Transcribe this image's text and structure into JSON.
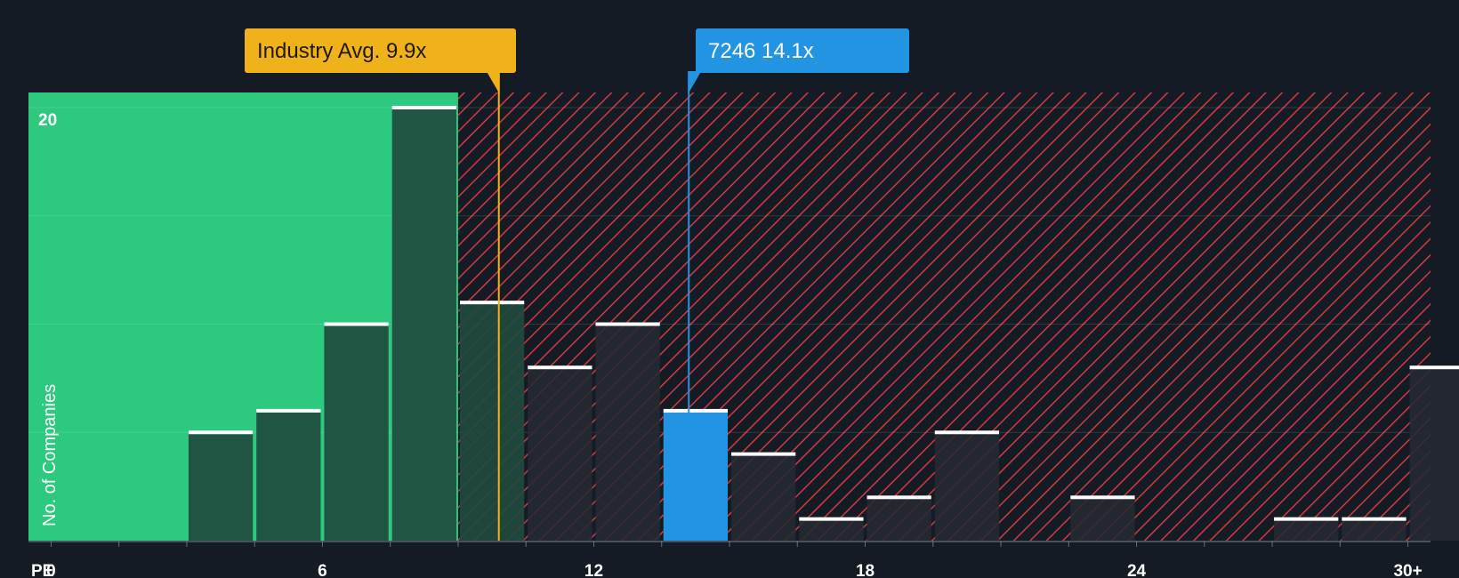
{
  "chart_data": {
    "type": "bar",
    "title": "",
    "xlabel": "PE",
    "ylabel": "No. of Companies",
    "xlim": [
      -0.5,
      30.5
    ],
    "ylim": [
      0,
      20.7
    ],
    "grid": true,
    "x_ticks": [
      {
        "value": 0,
        "label": "0"
      },
      {
        "value": 6,
        "label": "6"
      },
      {
        "value": 12,
        "label": "12"
      },
      {
        "value": 18,
        "label": "18"
      },
      {
        "value": 24,
        "label": "24"
      },
      {
        "value": 30,
        "label": "30+"
      }
    ],
    "y_ticks": [
      {
        "value": 20,
        "label": "20"
      }
    ],
    "bin_width": 1.5,
    "bins": [
      {
        "start": 3.0,
        "value": 5
      },
      {
        "start": 4.5,
        "value": 6
      },
      {
        "start": 6.0,
        "value": 10
      },
      {
        "start": 7.5,
        "value": 20
      },
      {
        "start": 9.0,
        "value": 11
      },
      {
        "start": 10.5,
        "value": 8
      },
      {
        "start": 12.0,
        "value": 10
      },
      {
        "start": 13.5,
        "value": 6,
        "highlight": true
      },
      {
        "start": 15.0,
        "value": 4
      },
      {
        "start": 16.5,
        "value": 1
      },
      {
        "start": 18.0,
        "value": 2
      },
      {
        "start": 19.5,
        "value": 5
      },
      {
        "start": 22.5,
        "value": 2
      },
      {
        "start": 27.0,
        "value": 1
      },
      {
        "start": 28.5,
        "value": 1
      },
      {
        "start": 30.0,
        "value": 8
      }
    ],
    "industry_avg": {
      "value": 9.9,
      "label": "Industry Avg. 9.9x"
    },
    "company": {
      "value": 14.1,
      "label": "7246 14.1x"
    },
    "colors": {
      "background": "#151b24",
      "fair_zone": "#2dc97e",
      "over_zone_hatch": "#d23a3f",
      "bar_fair": "#1f4a3e",
      "bar_over": "#252932",
      "bar_highlight": "#2394e1",
      "industry": "#f0b21a",
      "company": "#2394e1",
      "bar_cap": "#ffffff"
    }
  }
}
